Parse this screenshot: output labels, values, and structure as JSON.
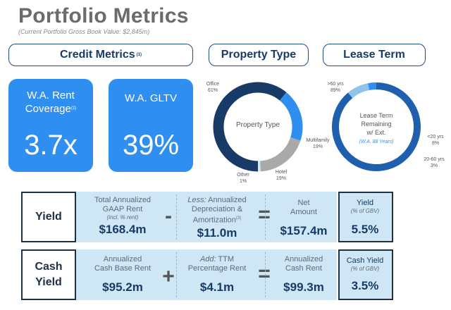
{
  "header": {
    "title": "Portfolio Metrics",
    "subtitle": "(Current Portfolio Gross Book Value: $2,845m)"
  },
  "sections": {
    "credit": "Credit Metrics",
    "credit_sup": "(1)",
    "property": "Property Type",
    "lease": "Lease Term"
  },
  "credit_cards": [
    {
      "label_line1": "W.A. Rent",
      "label_line2": "Coverage",
      "sup": "(2)",
      "value": "3.7x"
    },
    {
      "label_line1": "W.A. GLTV",
      "label_line2": "",
      "sup": "",
      "value": "39%"
    }
  ],
  "property_donut": {
    "center": "Property Type",
    "segments": [
      {
        "name": "Office",
        "pct": "61%",
        "value": 61,
        "color": "#173b66"
      },
      {
        "name": "Multifamily",
        "pct": "19%",
        "value": 19,
        "color": "#2f8ff0"
      },
      {
        "name": "Hotel",
        "pct": "19%",
        "value": 19,
        "color": "#a9a9a9"
      },
      {
        "name": "Other",
        "pct": "1%",
        "value": 1,
        "color": "#cfe6f4"
      }
    ]
  },
  "lease_donut": {
    "center_line1": "Lease Term",
    "center_line2": "Remaining",
    "center_line3": "w/ Ext.",
    "center_note": "(W.A. 88 Years)",
    "segments": [
      {
        "name": ">60 yrs",
        "pct": "89%",
        "value": 89,
        "color": "#1f5fae"
      },
      {
        "name": "<20 yrs",
        "pct": "8%",
        "value": 8,
        "color": "#8fc4ea"
      },
      {
        "name": "20-60 yrs",
        "pct": "3%",
        "value": 3,
        "color": "#2f8ff0"
      }
    ]
  },
  "yield": {
    "head": "Yield",
    "c1": {
      "l1": "Total Annualized",
      "l2": "GAAP Rent",
      "note": "(incl. % rent)",
      "val": "$168.4m"
    },
    "op1": "-",
    "c2": {
      "l1a": "Less:",
      "l1b": " Annualized",
      "l2": "Depreciation &",
      "l3": "Amortization",
      "sup": "(3)",
      "val": "$11.0m"
    },
    "op2": "=",
    "c3": {
      "l1": "Net",
      "l2": "Amount",
      "val": "$157.4m"
    },
    "res": {
      "l1": "Yield",
      "note": "(% of GBV)",
      "val": "5.5%"
    }
  },
  "cash": {
    "head_l1": "Cash",
    "head_l2": "Yield",
    "c1": {
      "l1": "Annualized",
      "l2": "Cash Base Rent",
      "val": "$95.2m"
    },
    "op1": "+",
    "c2": {
      "l1a": "Add:",
      "l1b": " TTM",
      "l2": "Percentage Rent",
      "val": "$4.1m"
    },
    "op2": "=",
    "c3": {
      "l1": "Annualized",
      "l2": "Cash Rent",
      "val": "$99.3m"
    },
    "res": {
      "l1": "Cash Yield",
      "note": "(% of GBV)",
      "val": "3.5%"
    }
  }
}
